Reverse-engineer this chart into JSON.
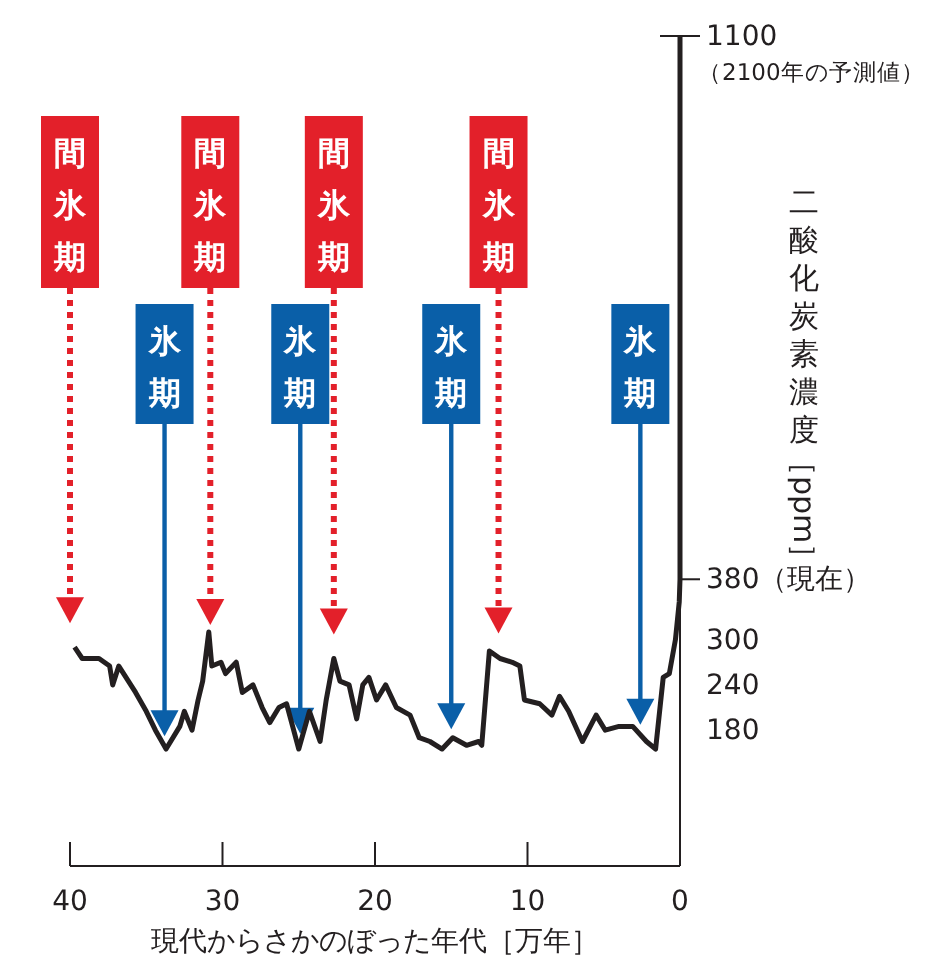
{
  "chart_data": {
    "type": "line",
    "xlabel": "現代からさかのぼった年代［万年］",
    "ylabel": "二酸化炭素濃度［ppm］",
    "xlim": [
      40,
      0
    ],
    "xticks": [
      40,
      30,
      20,
      10,
      0
    ],
    "ylim": [
      0,
      1100
    ],
    "yticks": [
      180,
      240,
      300,
      {
        "value": 380,
        "label": "380（現在）"
      },
      1100
    ],
    "grid": false,
    "series": [
      {
        "color": "#231f20",
        "x": [
          39.7,
          39.2,
          38.1,
          37.4,
          37.2,
          36.8,
          35.7,
          35.0,
          34.4,
          33.7,
          32.8,
          32.5,
          32.0,
          31.6,
          31.3,
          30.9,
          30.7,
          30.1,
          29.8,
          29.1,
          28.7,
          28.0,
          27.4,
          26.9,
          26.3,
          25.8,
          25.4,
          25.0,
          24.3,
          23.6,
          23.2,
          22.7,
          22.3,
          21.7,
          21.2,
          20.8,
          20.4,
          19.9,
          19.3,
          18.6,
          17.7,
          17.1,
          16.4,
          15.6,
          14.9,
          14.0,
          13.2,
          13.0,
          12.5,
          11.8,
          11.0,
          10.5,
          10.2,
          9.2,
          8.4,
          7.9,
          7.3,
          6.4,
          5.5,
          4.9,
          4.0,
          3.1,
          2.2,
          1.6,
          1.1,
          0.7,
          0.3,
          0.05,
          0,
          0
        ],
        "values": [
          290,
          275,
          275,
          265,
          240,
          265,
          230,
          205,
          180,
          155,
          185,
          205,
          180,
          220,
          245,
          310,
          265,
          270,
          255,
          270,
          230,
          240,
          210,
          190,
          210,
          215,
          185,
          155,
          205,
          165,
          220,
          275,
          245,
          240,
          195,
          240,
          250,
          220,
          240,
          210,
          200,
          170,
          165,
          155,
          170,
          160,
          165,
          160,
          285,
          275,
          270,
          265,
          220,
          215,
          200,
          225,
          205,
          165,
          200,
          180,
          185,
          185,
          165,
          155,
          250,
          255,
          300,
          350,
          380,
          1100
        ]
      }
    ],
    "annotations": [
      "（2100年の予測値）"
    ],
    "ref_lines": [
      {
        "axis": "x",
        "value": 40,
        "label": "間氷期",
        "color": "#e3202a",
        "line_style": "dotted"
      },
      {
        "axis": "x",
        "value": 30.8,
        "label": "間氷期",
        "color": "#e3202a",
        "line_style": "dotted"
      },
      {
        "axis": "x",
        "value": 22.7,
        "label": "間氷期",
        "color": "#e3202a",
        "line_style": "dotted"
      },
      {
        "axis": "x",
        "value": 11.9,
        "label": "間氷期",
        "color": "#e3202a",
        "line_style": "dotted"
      },
      {
        "axis": "x",
        "value": 33.8,
        "label": "氷期",
        "color": "#0a5fa8",
        "line_style": "solid"
      },
      {
        "axis": "x",
        "value": 24.9,
        "label": "氷期",
        "color": "#0a5fa8",
        "line_style": "solid"
      },
      {
        "axis": "x",
        "value": 15.0,
        "label": "氷期",
        "color": "#0a5fa8",
        "line_style": "solid"
      },
      {
        "axis": "x",
        "value": 2.6,
        "label": "氷期",
        "color": "#0a5fa8",
        "line_style": "solid"
      }
    ]
  }
}
